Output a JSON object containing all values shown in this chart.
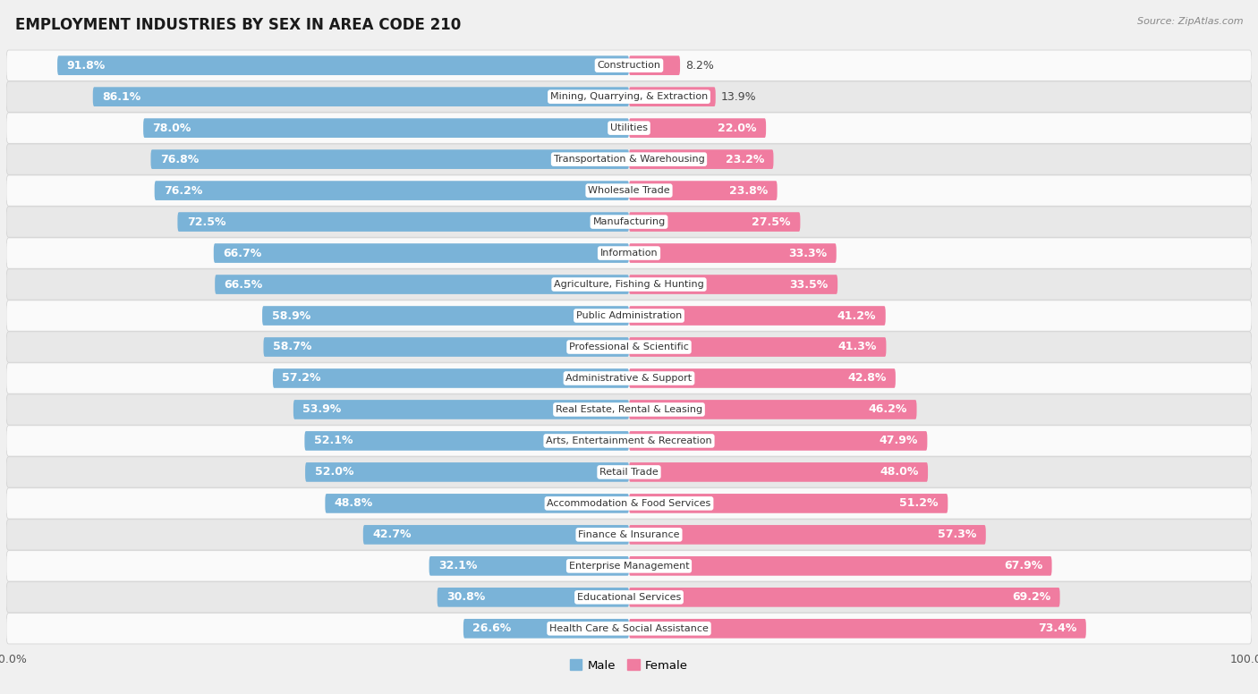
{
  "title": "EMPLOYMENT INDUSTRIES BY SEX IN AREA CODE 210",
  "source": "Source: ZipAtlas.com",
  "categories": [
    "Construction",
    "Mining, Quarrying, & Extraction",
    "Utilities",
    "Transportation & Warehousing",
    "Wholesale Trade",
    "Manufacturing",
    "Information",
    "Agriculture, Fishing & Hunting",
    "Public Administration",
    "Professional & Scientific",
    "Administrative & Support",
    "Real Estate, Rental & Leasing",
    "Arts, Entertainment & Recreation",
    "Retail Trade",
    "Accommodation & Food Services",
    "Finance & Insurance",
    "Enterprise Management",
    "Educational Services",
    "Health Care & Social Assistance"
  ],
  "male_pct": [
    91.8,
    86.1,
    78.0,
    76.8,
    76.2,
    72.5,
    66.7,
    66.5,
    58.9,
    58.7,
    57.2,
    53.9,
    52.1,
    52.0,
    48.8,
    42.7,
    32.1,
    30.8,
    26.6
  ],
  "female_pct": [
    8.2,
    13.9,
    22.0,
    23.2,
    23.8,
    27.5,
    33.3,
    33.5,
    41.2,
    41.3,
    42.8,
    46.2,
    47.9,
    48.0,
    51.2,
    57.3,
    67.9,
    69.2,
    73.4
  ],
  "male_color": "#7ab3d8",
  "female_color": "#f07ca0",
  "bg_color": "#f0f0f0",
  "row_color_odd": "#fafafa",
  "row_color_even": "#e8e8e8",
  "row_border_color": "#d0d0d0",
  "title_fontsize": 12,
  "label_fontsize": 9,
  "category_fontsize": 8,
  "source_fontsize": 8,
  "male_inside_threshold": 20,
  "female_inside_threshold": 20
}
